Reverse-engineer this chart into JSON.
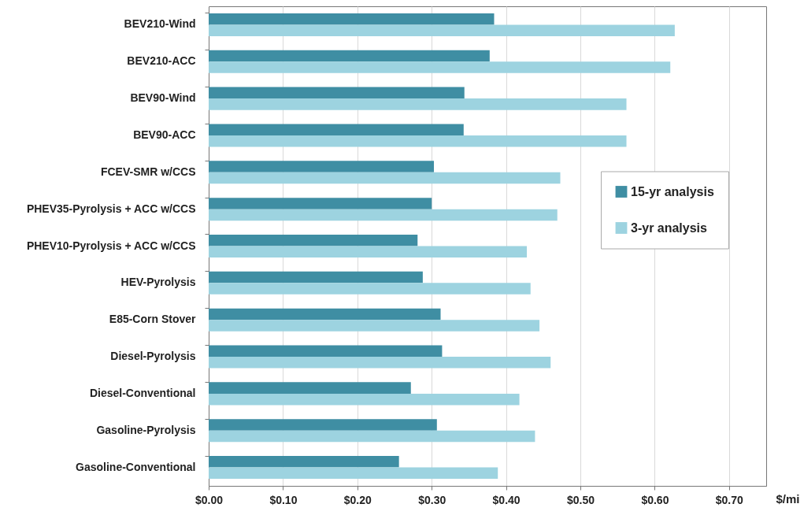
{
  "chart_data": {
    "type": "bar",
    "orientation": "horizontal",
    "xlabel": "$/mi",
    "categories": [
      "BEV210-Wind",
      "BEV210-ACC",
      "BEV90-Wind",
      "BEV90-ACC",
      "FCEV-SMR w/CCS",
      "PHEV35-Pyrolysis + ACC w/CCS",
      "PHEV10-Pyrolysis + ACC w/CCS",
      "HEV-Pyrolysis",
      "E85-Corn Stover",
      "Diesel-Pyrolysis",
      "Diesel-Conventional",
      "Gasoline-Pyrolysis",
      "Gasoline-Conventional"
    ],
    "series": [
      {
        "name": "15-yr analysis",
        "color": "#3f8ea3",
        "values": [
          0.384,
          0.378,
          0.344,
          0.343,
          0.303,
          0.3,
          0.281,
          0.288,
          0.312,
          0.314,
          0.272,
          0.307,
          0.256
        ]
      },
      {
        "name": "3-yr analysis",
        "color": "#9dd3e0",
        "values": [
          0.627,
          0.621,
          0.562,
          0.562,
          0.473,
          0.469,
          0.428,
          0.433,
          0.445,
          0.46,
          0.418,
          0.439,
          0.389
        ]
      }
    ],
    "xlim": [
      0,
      0.75
    ],
    "xticks": [
      {
        "value": 0,
        "label": "$0.00"
      },
      {
        "value": 0.1,
        "label": "$0.10"
      },
      {
        "value": 0.2,
        "label": "$0.20"
      },
      {
        "value": 0.3,
        "label": "$0.30"
      },
      {
        "value": 0.4,
        "label": "$0.40"
      },
      {
        "value": 0.5,
        "label": "$0.50"
      },
      {
        "value": 0.6,
        "label": "$0.60"
      },
      {
        "value": 0.7,
        "label": "$0.70"
      }
    ],
    "grid": "x",
    "legend": "right"
  }
}
